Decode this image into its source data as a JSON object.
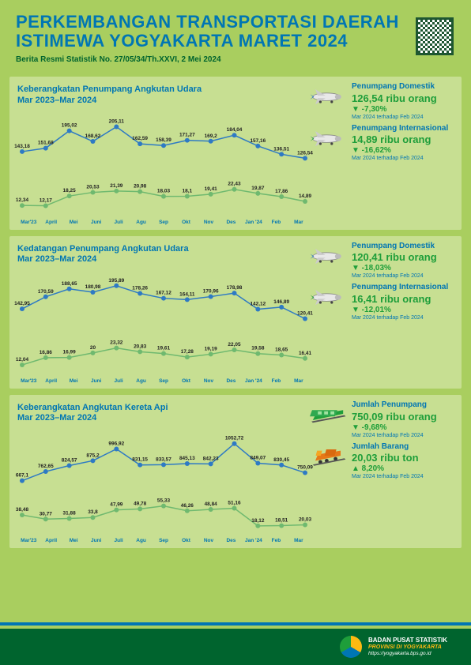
{
  "header": {
    "title": "PERKEMBANGAN TRANSPORTASI DAERAH ISTIMEWA YOGYAKARTA MARET 2024",
    "subtitle": "Berita Resmi Statistik No. 27/05/34/Th.XXVI, 2 Mei 2024"
  },
  "xLabels": [
    "Mar'23",
    "April",
    "Mei",
    "Juni",
    "Juli",
    "Agu",
    "Sep",
    "Okt",
    "Nov",
    "Des",
    "Jan '24",
    "Feb",
    "Mar"
  ],
  "panels": [
    {
      "title": "Keberangkatan Penumpang Angkutan Udara\nMar 2023–Mar 2024",
      "mainSeries": {
        "values": [
          143.18,
          151.68,
          195.02,
          168.62,
          205.11,
          162.59,
          158.39,
          171.27,
          169.2,
          184.04,
          157.16,
          136.51,
          126.54
        ],
        "labels": [
          "143,18",
          "151,68",
          "195,02",
          "168,62",
          "205,11",
          "162,59",
          "158,39",
          "171,27",
          "169,2",
          "184,04",
          "157,16",
          "136,51",
          "126,54"
        ],
        "color": "#2e7ac4",
        "ymin": 100,
        "ymax": 220
      },
      "subSeries": {
        "values": [
          12.34,
          12.17,
          18.25,
          20.53,
          21.39,
          20.98,
          18.03,
          18.1,
          19.41,
          22.43,
          19.87,
          17.86,
          14.89
        ],
        "labels": [
          "12,34",
          "12,17",
          "18,25",
          "20,53",
          "21,39",
          "20,98",
          "18,03",
          "18,1",
          "19,41",
          "22,43",
          "19,87",
          "17,86",
          "14,89"
        ],
        "color": "#6fb96f",
        "ymin": 10,
        "ymax": 25
      },
      "stats": [
        {
          "title": "Penumpang Domestik",
          "value": "126,54 ribu orang",
          "change": "▼ -7,30%",
          "note": "Mar 2024 terhadap Feb 2024",
          "icon": "plane-blue"
        },
        {
          "title": "Penumpang Internasional",
          "value": "14,89 ribu orang",
          "change": "▼ -16,62%",
          "note": "Mar 2024 terhadap Feb 2024",
          "icon": "plane-green"
        }
      ]
    },
    {
      "title": "Kedatangan Penumpang Angkutan Udara\nMar 2023–Mar 2024",
      "mainSeries": {
        "values": [
          142.95,
          170.59,
          188.65,
          180.98,
          195.89,
          178.26,
          167.12,
          164.11,
          170.96,
          178.98,
          142.12,
          146.89,
          120.41
        ],
        "labels": [
          "142,95",
          "170,59",
          "188,65",
          "180,98",
          "195,89",
          "178,26",
          "167,12",
          "164,11",
          "170,96",
          "178,98",
          "142,12",
          "146,89",
          "120,41"
        ],
        "color": "#2e7ac4",
        "ymin": 100,
        "ymax": 210
      },
      "subSeries": {
        "values": [
          12.04,
          16.86,
          16.99,
          20,
          23.32,
          20.83,
          19.61,
          17.28,
          19.19,
          22.05,
          19.58,
          18.65,
          16.41
        ],
        "labels": [
          "12,04",
          "16,86",
          "16,99",
          "20",
          "23,32",
          "20,83",
          "19,61",
          "17,28",
          "19,19",
          "22,05",
          "19,58",
          "18,65",
          "16,41"
        ],
        "color": "#6fb96f",
        "ymin": 10,
        "ymax": 26
      },
      "stats": [
        {
          "title": "Penumpang Domestik",
          "value": "120,41 ribu orang",
          "change": "▼ -18,03%",
          "note": "Mar 2024 terhadap Feb 2024",
          "icon": "plane-blue"
        },
        {
          "title": "Penumpang Internasional",
          "value": "16,41 ribu orang",
          "change": "▼ -12,01%",
          "note": "Mar 2024 terhadap Feb 2024",
          "icon": "plane-green"
        }
      ]
    },
    {
      "title": "Keberangkatan Angkutan Kereta Api\nMar 2023–Mar 2024",
      "mainSeries": {
        "values": [
          667.1,
          762.65,
          824.57,
          875.2,
          996.92,
          831.15,
          833.57,
          845.13,
          842.23,
          1052.72,
          849.07,
          830.45,
          750.09
        ],
        "labels": [
          "667,1",
          "762,65",
          "824,57",
          "875,2",
          "996,92",
          "831,15",
          "833,57",
          "845,13",
          "842,23",
          "1052,72",
          "849,07",
          "830,45",
          "750,09"
        ],
        "color": "#2e7ac4",
        "ymin": 600,
        "ymax": 1100
      },
      "subSeries": {
        "values": [
          38.48,
          30.77,
          31.88,
          33.8,
          47.99,
          49.78,
          55.33,
          46.26,
          48.84,
          51.16,
          18.12,
          18.51,
          20.03
        ],
        "labels": [
          "38,48",
          "30,77",
          "31,88",
          "33,8",
          "47,99",
          "49,78",
          "55,33",
          "46,26",
          "48,84",
          "51,16",
          "18,12",
          "18,51",
          "20,03"
        ],
        "color": "#6fb96f",
        "ymin": 15,
        "ymax": 60
      },
      "stats": [
        {
          "title": "Jumlah Penumpang",
          "value": "750,09 ribu orang",
          "change": "▼ -9,68%",
          "note": "Mar 2024 terhadap Feb 2024",
          "icon": "train-green"
        },
        {
          "title": "Jumlah Barang",
          "value": "20,03 ribu ton",
          "change": "▲ 8,20%",
          "note": "Mar 2024 terhadap Feb 2024",
          "icon": "train-orange"
        }
      ]
    }
  ],
  "footer": {
    "l1": "BADAN PUSAT STATISTIK",
    "l2": "PROVINSI DI YOGYAKARTA",
    "l3": "https://yogyakarta.bps.go.id"
  },
  "colors": {
    "bg": "#a9ce5f",
    "panel": "#c7df92",
    "blue": "#0076b3",
    "green": "#1e9e3a",
    "darkgreen": "#00642e"
  }
}
